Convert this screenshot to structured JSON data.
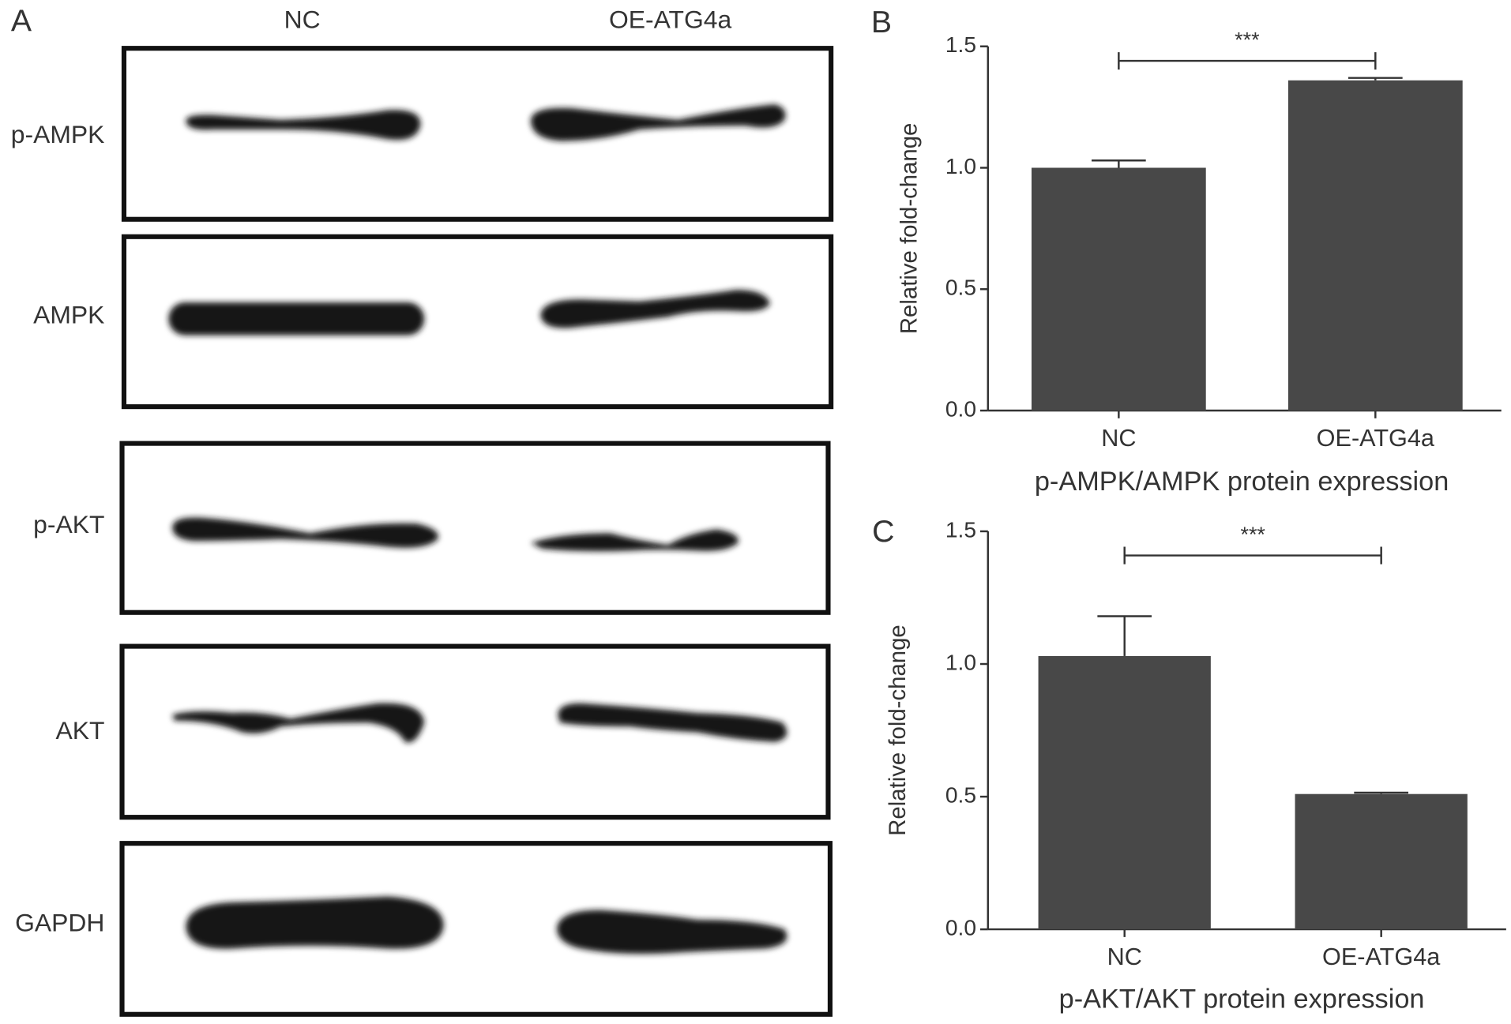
{
  "blot": {
    "panel": "A",
    "lanes": [
      "NC",
      "OE-ATG4a"
    ],
    "rows": [
      "p-AMPK",
      "AMPK",
      "p-AKT",
      "AKT",
      "GAPDH"
    ]
  },
  "chart_data": [
    {
      "type": "bar",
      "panel": "B",
      "ylabel": "Relative fold-change",
      "xlabel": "p-AMPK/AMPK protein expression",
      "categories": [
        "NC",
        "OE-ATG4a"
      ],
      "values": [
        1.0,
        1.36
      ],
      "errors": [
        0.03,
        0.01
      ],
      "color": "#484848",
      "ylim": [
        0,
        1.5
      ],
      "yticks": [
        {
          "value": 0,
          "label": "0.0"
        },
        0.5,
        {
          "value": 1,
          "label": "1.0"
        },
        1.5
      ],
      "annotations": [
        {
          "text": "***"
        }
      ]
    },
    {
      "type": "bar",
      "panel": "C",
      "ylabel": "Relative fold-change",
      "xlabel": "p-AKT/AKT protein expression",
      "categories": [
        "NC",
        "OE-ATG4a"
      ],
      "values": [
        1.03,
        0.51
      ],
      "errors": [
        0.15,
        0.005
      ],
      "color": "#484848",
      "ylim": [
        0,
        1.5
      ],
      "yticks": [
        {
          "value": 0,
          "label": "0.0"
        },
        0.5,
        {
          "value": 1,
          "label": "1.0"
        },
        1.5
      ],
      "annotations": [
        {
          "text": "***"
        }
      ]
    }
  ]
}
